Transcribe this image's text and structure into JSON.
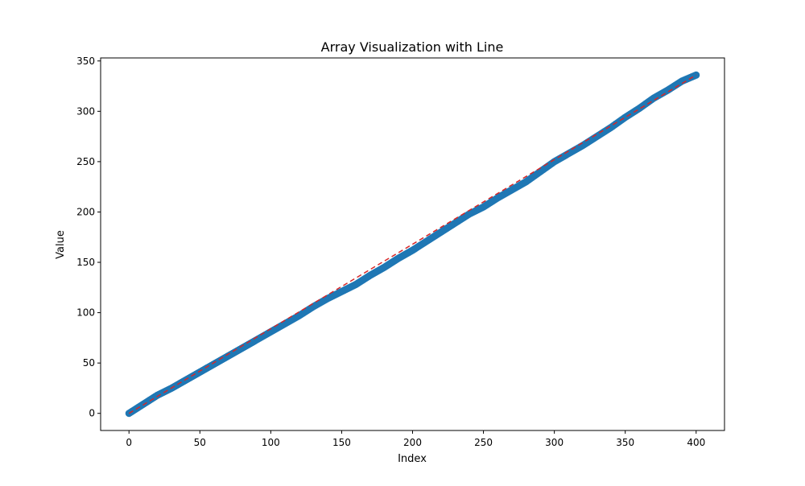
{
  "chart_data": {
    "type": "scatter",
    "title": "Array Visualization with Line",
    "xlabel": "Index",
    "ylabel": "Value",
    "xlim": [
      -20,
      420
    ],
    "ylim": [
      -17,
      353
    ],
    "xticks": [
      0,
      50,
      100,
      150,
      200,
      250,
      300,
      350,
      400
    ],
    "yticks": [
      0,
      50,
      100,
      150,
      200,
      250,
      300,
      350
    ],
    "grid": false,
    "legend": "none",
    "series": [
      {
        "kind": "scatter",
        "color": "#1f77b4",
        "x": [
          0,
          10,
          20,
          30,
          40,
          50,
          60,
          70,
          80,
          90,
          100,
          110,
          120,
          130,
          140,
          150,
          160,
          170,
          180,
          190,
          200,
          210,
          220,
          230,
          240,
          250,
          260,
          270,
          280,
          290,
          300,
          310,
          320,
          330,
          340,
          350,
          360,
          370,
          380,
          390,
          400
        ],
        "y": [
          0,
          9,
          18,
          25,
          33,
          41,
          49,
          57,
          65,
          73,
          81,
          89,
          97,
          106,
          114,
          121,
          128,
          137,
          145,
          154,
          162,
          171,
          180,
          189,
          198,
          205,
          214,
          222,
          230,
          240,
          250,
          258,
          266,
          275,
          284,
          294,
          303,
          313,
          321,
          330,
          336
        ]
      },
      {
        "kind": "line",
        "style": "dashed",
        "color": "#d62728",
        "x": [
          0,
          400
        ],
        "y": [
          0,
          336
        ]
      }
    ]
  }
}
